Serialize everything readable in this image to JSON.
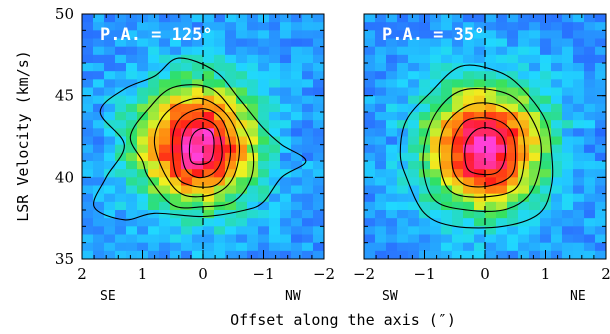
{
  "chart_data": [
    {
      "type": "heatmap",
      "panel_label": "P.A. = 125°",
      "xlim": [
        2,
        -2
      ],
      "ylim": [
        35,
        50
      ],
      "x_ticks": [
        2,
        1,
        0,
        -1,
        -2
      ],
      "x_tick_labels": [
        "2",
        "1",
        "0",
        "−1",
        "−2"
      ],
      "y_ticks": [
        35,
        40,
        45,
        50
      ],
      "y_tick_labels": [
        "35",
        "40",
        "45",
        "50"
      ],
      "direction_labels": {
        "left": "SE",
        "right": "NW"
      },
      "peak": {
        "offset": 0.1,
        "velocity": 42.0
      },
      "contours": [
        [
          [
            1.8,
            38.2
          ],
          [
            1.3,
            37.4
          ],
          [
            0.8,
            37.8
          ],
          [
            0,
            37.6
          ],
          [
            -0.7,
            38.0
          ],
          [
            -1.0,
            38.5
          ],
          [
            -1.3,
            40.0
          ],
          [
            -1.7,
            41.0
          ],
          [
            -1.3,
            42.0
          ],
          [
            -1.0,
            43.0
          ],
          [
            -0.6,
            44.8
          ],
          [
            -0.2,
            46.5
          ],
          [
            0.4,
            47.3
          ],
          [
            0.8,
            46.2
          ],
          [
            1.3,
            45.4
          ],
          [
            1.7,
            44.0
          ],
          [
            1.3,
            42.0
          ],
          [
            1.6,
            40.0
          ]
        ],
        [
          [
            0.9,
            40.0
          ],
          [
            0.5,
            38.3
          ],
          [
            0,
            38.2
          ],
          [
            -0.5,
            38.5
          ],
          [
            -0.8,
            40.0
          ],
          [
            -0.8,
            42.0
          ],
          [
            -0.5,
            44.0
          ],
          [
            -0.1,
            45.5
          ],
          [
            0.5,
            45.5
          ],
          [
            0.9,
            44.2
          ],
          [
            1.2,
            42.5
          ],
          [
            1.0,
            41.0
          ]
        ],
        [
          [
            0.6,
            40.0
          ],
          [
            0.3,
            38.9
          ],
          [
            -0.2,
            39.0
          ],
          [
            -0.5,
            40.0
          ],
          [
            -0.6,
            42.0
          ],
          [
            -0.4,
            43.8
          ],
          [
            0,
            44.8
          ],
          [
            0.4,
            44.5
          ],
          [
            0.7,
            43.5
          ],
          [
            0.8,
            42.0
          ]
        ],
        [
          [
            0.45,
            40.2
          ],
          [
            0.2,
            39.5
          ],
          [
            -0.2,
            39.5
          ],
          [
            -0.4,
            40.5
          ],
          [
            -0.45,
            42.0
          ],
          [
            -0.3,
            43.6
          ],
          [
            0,
            44.2
          ],
          [
            0.35,
            43.7
          ],
          [
            0.5,
            42.5
          ]
        ],
        [
          [
            0.3,
            40.6
          ],
          [
            0.1,
            40.0
          ],
          [
            -0.15,
            40.2
          ],
          [
            -0.3,
            41.0
          ],
          [
            -0.3,
            42.2
          ],
          [
            -0.2,
            43.2
          ],
          [
            0.05,
            43.6
          ],
          [
            0.25,
            43.2
          ],
          [
            0.35,
            42.2
          ]
        ],
        [
          [
            0.2,
            41.0
          ],
          [
            0.05,
            40.8
          ],
          [
            -0.12,
            41.0
          ],
          [
            -0.18,
            41.8
          ],
          [
            -0.15,
            42.7
          ],
          [
            0,
            43.0
          ],
          [
            0.15,
            42.7
          ],
          [
            0.22,
            42.0
          ]
        ]
      ]
    },
    {
      "type": "heatmap",
      "panel_label": "P.A. = 35°",
      "xlim": [
        -2,
        2
      ],
      "ylim": [
        35,
        50
      ],
      "x_ticks": [
        -2,
        -1,
        0,
        1,
        2
      ],
      "x_tick_labels": [
        "−2",
        "−1",
        "0",
        "1",
        "2"
      ],
      "y_ticks": [
        35,
        40,
        45,
        50
      ],
      "y_tick_labels": [],
      "direction_labels": {
        "left": "SW",
        "right": "NE"
      },
      "peak": {
        "offset": 0.0,
        "velocity": 41.8
      },
      "contours": [
        [
          [
            -1.3,
            40.0
          ],
          [
            -1.0,
            37.8
          ],
          [
            -0.5,
            37.0
          ],
          [
            0.3,
            37.0
          ],
          [
            0.9,
            37.8
          ],
          [
            1.1,
            39.5
          ],
          [
            1.1,
            41.5
          ],
          [
            1.0,
            43.5
          ],
          [
            0.6,
            45.5
          ],
          [
            0.2,
            46.5
          ],
          [
            -0.4,
            46.8
          ],
          [
            -0.9,
            45.2
          ],
          [
            -1.3,
            43.5
          ],
          [
            -1.4,
            41.5
          ]
        ],
        [
          [
            -1.0,
            40.0
          ],
          [
            -0.8,
            38.5
          ],
          [
            -0.3,
            38.0
          ],
          [
            0.3,
            38.0
          ],
          [
            0.7,
            38.8
          ],
          [
            0.9,
            40.5
          ],
          [
            0.9,
            42.5
          ],
          [
            0.6,
            44.5
          ],
          [
            0.2,
            45.3
          ],
          [
            -0.4,
            45.3
          ],
          [
            -0.8,
            44.0
          ],
          [
            -1.0,
            42.0
          ]
        ],
        [
          [
            -0.7,
            40.0
          ],
          [
            -0.5,
            39.0
          ],
          [
            0,
            38.8
          ],
          [
            0.5,
            39.3
          ],
          [
            0.65,
            41.0
          ],
          [
            0.6,
            43.0
          ],
          [
            0.3,
            44.3
          ],
          [
            -0.2,
            44.5
          ],
          [
            -0.6,
            43.5
          ],
          [
            -0.75,
            42.0
          ]
        ],
        [
          [
            -0.5,
            40.2
          ],
          [
            -0.3,
            39.5
          ],
          [
            0.1,
            39.5
          ],
          [
            0.45,
            40.2
          ],
          [
            0.5,
            41.8
          ],
          [
            0.4,
            43.0
          ],
          [
            0.1,
            43.6
          ],
          [
            -0.3,
            43.5
          ],
          [
            -0.5,
            42.5
          ],
          [
            -0.55,
            41.3
          ]
        ],
        [
          [
            -0.3,
            40.6
          ],
          [
            -0.1,
            40.2
          ],
          [
            0.2,
            40.3
          ],
          [
            0.33,
            41.2
          ],
          [
            0.3,
            42.4
          ],
          [
            0.1,
            43.0
          ],
          [
            -0.15,
            42.9
          ],
          [
            -0.32,
            42.0
          ]
        ]
      ]
    }
  ],
  "axes": {
    "ylabel": "LSR Velocity (km/s)",
    "xlabel": "Offset along the axis (″)"
  },
  "colors": {
    "background_blue": "#1a4cff",
    "cyan": "#20d8ff",
    "green": "#30e060",
    "yellow": "#f0f020",
    "orange": "#ff8c10",
    "red": "#ff1818",
    "magenta": "#ff40d8"
  }
}
